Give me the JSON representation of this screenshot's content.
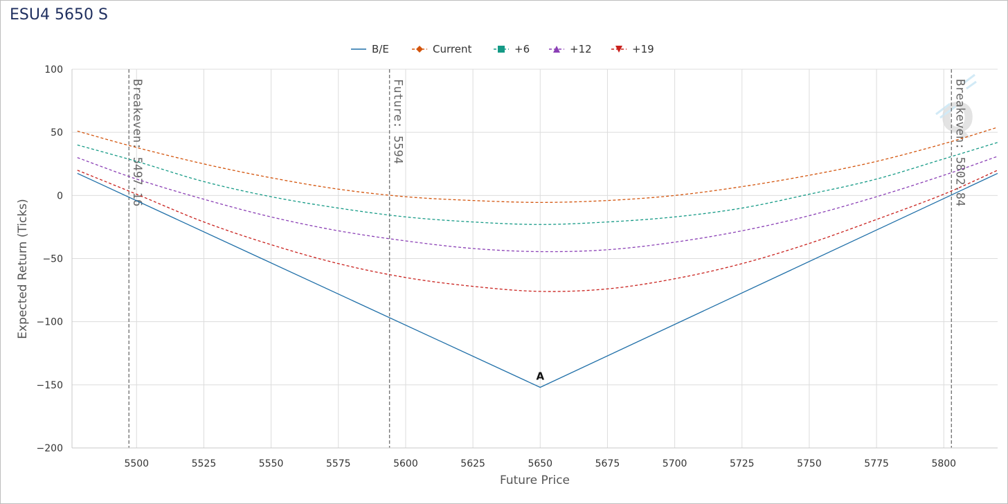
{
  "title": "ESU4 5650 S",
  "chart_data": {
    "type": "line",
    "xlabel": "Future Price",
    "ylabel": "Expected Return (Ticks)",
    "xlim": [
      5476,
      5820
    ],
    "ylim": [
      -200,
      100
    ],
    "xticks": [
      5500,
      5525,
      5550,
      5575,
      5600,
      5625,
      5650,
      5675,
      5700,
      5725,
      5750,
      5775,
      5800
    ],
    "yticks": [
      100,
      50,
      0,
      -50,
      -100,
      -150,
      -200
    ],
    "grid": true,
    "legend_position": "top-center",
    "series": [
      {
        "name": "B/E",
        "color": "#1f6fa8",
        "dash": false,
        "marker": "none",
        "x": [
          5478,
          5650,
          5820
        ],
        "y": [
          17.5,
          -152,
          17.5
        ]
      },
      {
        "name": "Current",
        "color": "#d3540c",
        "dash": true,
        "marker": "diamond",
        "x": [
          5478,
          5500,
          5525,
          5550,
          5575,
          5600,
          5625,
          5650,
          5675,
          5700,
          5725,
          5750,
          5775,
          5800,
          5820
        ],
        "y": [
          51,
          38,
          25,
          14,
          5,
          -1,
          -4,
          -5.5,
          -4,
          0,
          7,
          16,
          27,
          41,
          54
        ]
      },
      {
        "name": "+6",
        "color": "#159a86",
        "dash": true,
        "marker": "square",
        "x": [
          5478,
          5500,
          5525,
          5550,
          5575,
          5600,
          5625,
          5650,
          5675,
          5700,
          5725,
          5750,
          5775,
          5800,
          5820
        ],
        "y": [
          40,
          27,
          11,
          -1,
          -10,
          -17,
          -21,
          -23,
          -21,
          -17,
          -10,
          1,
          13,
          29,
          42
        ]
      },
      {
        "name": "+12",
        "color": "#8a3fb5",
        "dash": true,
        "marker": "triangle-up",
        "x": [
          5478,
          5500,
          5525,
          5550,
          5575,
          5600,
          5625,
          5650,
          5675,
          5700,
          5725,
          5750,
          5775,
          5800,
          5820
        ],
        "y": [
          30,
          13,
          -3,
          -17,
          -28,
          -36,
          -42,
          -44.5,
          -43,
          -37,
          -28,
          -16,
          -1,
          16,
          31
        ]
      },
      {
        "name": "+19",
        "color": "#c9201c",
        "dash": true,
        "marker": "triangle-down",
        "x": [
          5478,
          5500,
          5525,
          5550,
          5575,
          5600,
          5625,
          5650,
          5675,
          5700,
          5725,
          5750,
          5775,
          5800,
          5820
        ],
        "y": [
          20,
          1,
          -21,
          -39,
          -54,
          -65,
          -72,
          -76,
          -74,
          -66,
          -54,
          -38,
          -19,
          1,
          20
        ]
      }
    ],
    "vertical_lines": [
      {
        "x": 5497.16,
        "label": "Breakeven: 5497.16"
      },
      {
        "x": 5594,
        "label": "Future: 5594"
      },
      {
        "x": 5802.84,
        "label": "Breakeven: 5802.84"
      }
    ],
    "annotations": [
      {
        "x": 5650,
        "y": -152,
        "label": "A"
      }
    ]
  }
}
